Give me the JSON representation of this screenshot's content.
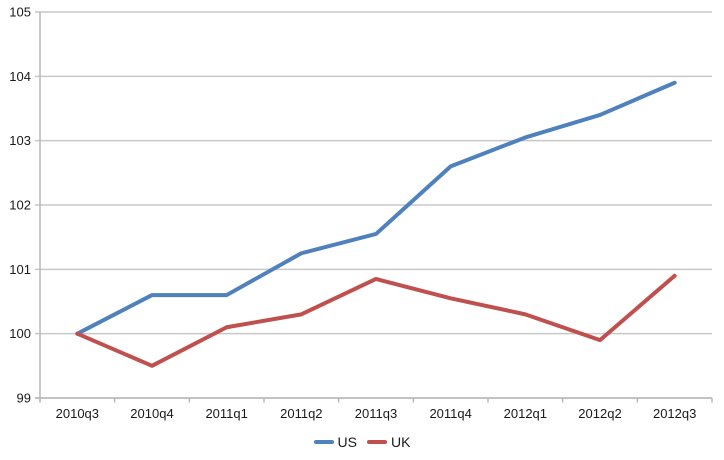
{
  "chart_data": {
    "type": "line",
    "title": "",
    "xlabel": "",
    "ylabel": "",
    "categories": [
      "2010q3",
      "2010q4",
      "2011q1",
      "2011q2",
      "2011q3",
      "2011q4",
      "2012q1",
      "2012q2",
      "2012q3"
    ],
    "series": [
      {
        "name": "US",
        "color": "#4F81BD",
        "values": [
          100,
          100.6,
          100.6,
          101.25,
          101.55,
          102.6,
          103.05,
          103.4,
          103.9
        ]
      },
      {
        "name": "UK",
        "color": "#C0504D",
        "values": [
          100,
          99.5,
          100.1,
          100.3,
          100.85,
          100.55,
          100.3,
          99.9,
          100.9
        ]
      }
    ],
    "ylim": [
      99,
      105
    ],
    "yticks": [
      99,
      100,
      101,
      102,
      103,
      104,
      105
    ],
    "grid": "horizontal",
    "legend_position": "bottom"
  },
  "colors": {
    "background": "#ffffff",
    "gridline": "#c8c8c8",
    "axis": "#b8b8b8",
    "text": "#1a1a1a"
  }
}
